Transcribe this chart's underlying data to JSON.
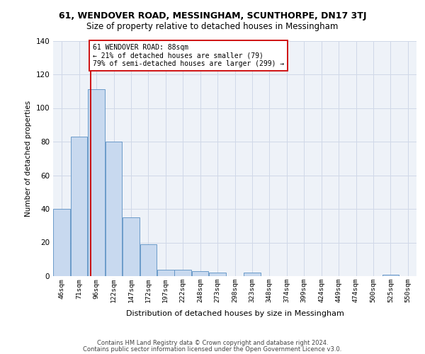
{
  "title1": "61, WENDOVER ROAD, MESSINGHAM, SCUNTHORPE, DN17 3TJ",
  "title2": "Size of property relative to detached houses in Messingham",
  "xlabel": "Distribution of detached houses by size in Messingham",
  "ylabel": "Number of detached properties",
  "bar_labels": [
    "46sqm",
    "71sqm",
    "96sqm",
    "122sqm",
    "147sqm",
    "172sqm",
    "197sqm",
    "222sqm",
    "248sqm",
    "273sqm",
    "298sqm",
    "323sqm",
    "348sqm",
    "374sqm",
    "399sqm",
    "424sqm",
    "449sqm",
    "474sqm",
    "500sqm",
    "525sqm",
    "550sqm"
  ],
  "bar_values": [
    40,
    83,
    111,
    80,
    35,
    19,
    4,
    4,
    3,
    2,
    0,
    2,
    0,
    0,
    0,
    0,
    0,
    0,
    0,
    1,
    0
  ],
  "bar_color": "#c8d9ef",
  "bar_edge_color": "#5a8fc3",
  "annotation_text_line1": "61 WENDOVER ROAD: 88sqm",
  "annotation_text_line2": "← 21% of detached houses are smaller (79)",
  "annotation_text_line3": "79% of semi-detached houses are larger (299) →",
  "annotation_box_color": "#ffffff",
  "annotation_box_edge": "#cc0000",
  "red_line_color": "#cc0000",
  "grid_color": "#d0d8e8",
  "bg_color": "#eef2f8",
  "ylim": [
    0,
    140
  ],
  "yticks": [
    0,
    20,
    40,
    60,
    80,
    100,
    120,
    140
  ],
  "footer1": "Contains HM Land Registry data © Crown copyright and database right 2024.",
  "footer2": "Contains public sector information licensed under the Open Government Licence v3.0."
}
